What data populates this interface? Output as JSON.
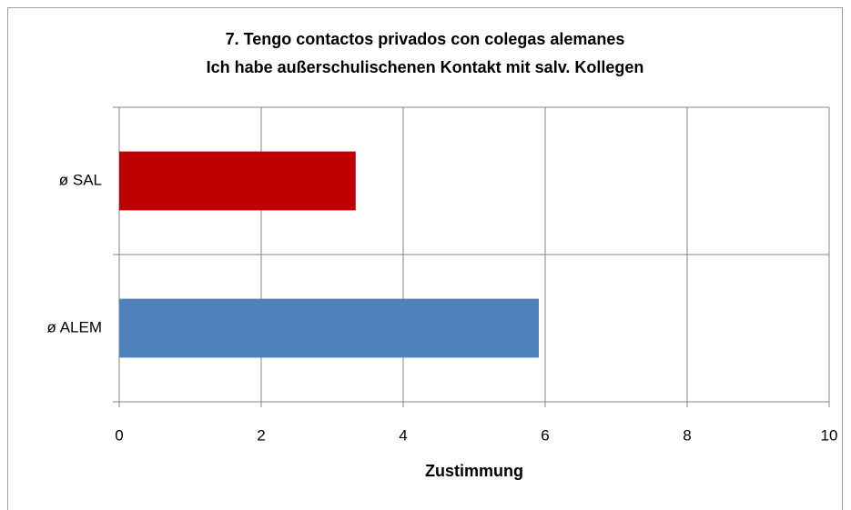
{
  "chart_data": {
    "type": "bar",
    "orientation": "horizontal",
    "title": [
      "7. Tengo contactos privados con colegas alemanes",
      "Ich habe außerschulischenen Kontakt mit salv. Kollegen"
    ],
    "categories": [
      "ø SAL",
      "ø ALEM"
    ],
    "values": [
      3.33,
      5.91
    ],
    "colors": [
      "#c00000",
      "#4f81bd"
    ],
    "xlabel": "Zustimmung",
    "xlim": [
      0,
      10
    ],
    "xticks": [
      0,
      2,
      4,
      6,
      8,
      10
    ],
    "grid": true
  }
}
